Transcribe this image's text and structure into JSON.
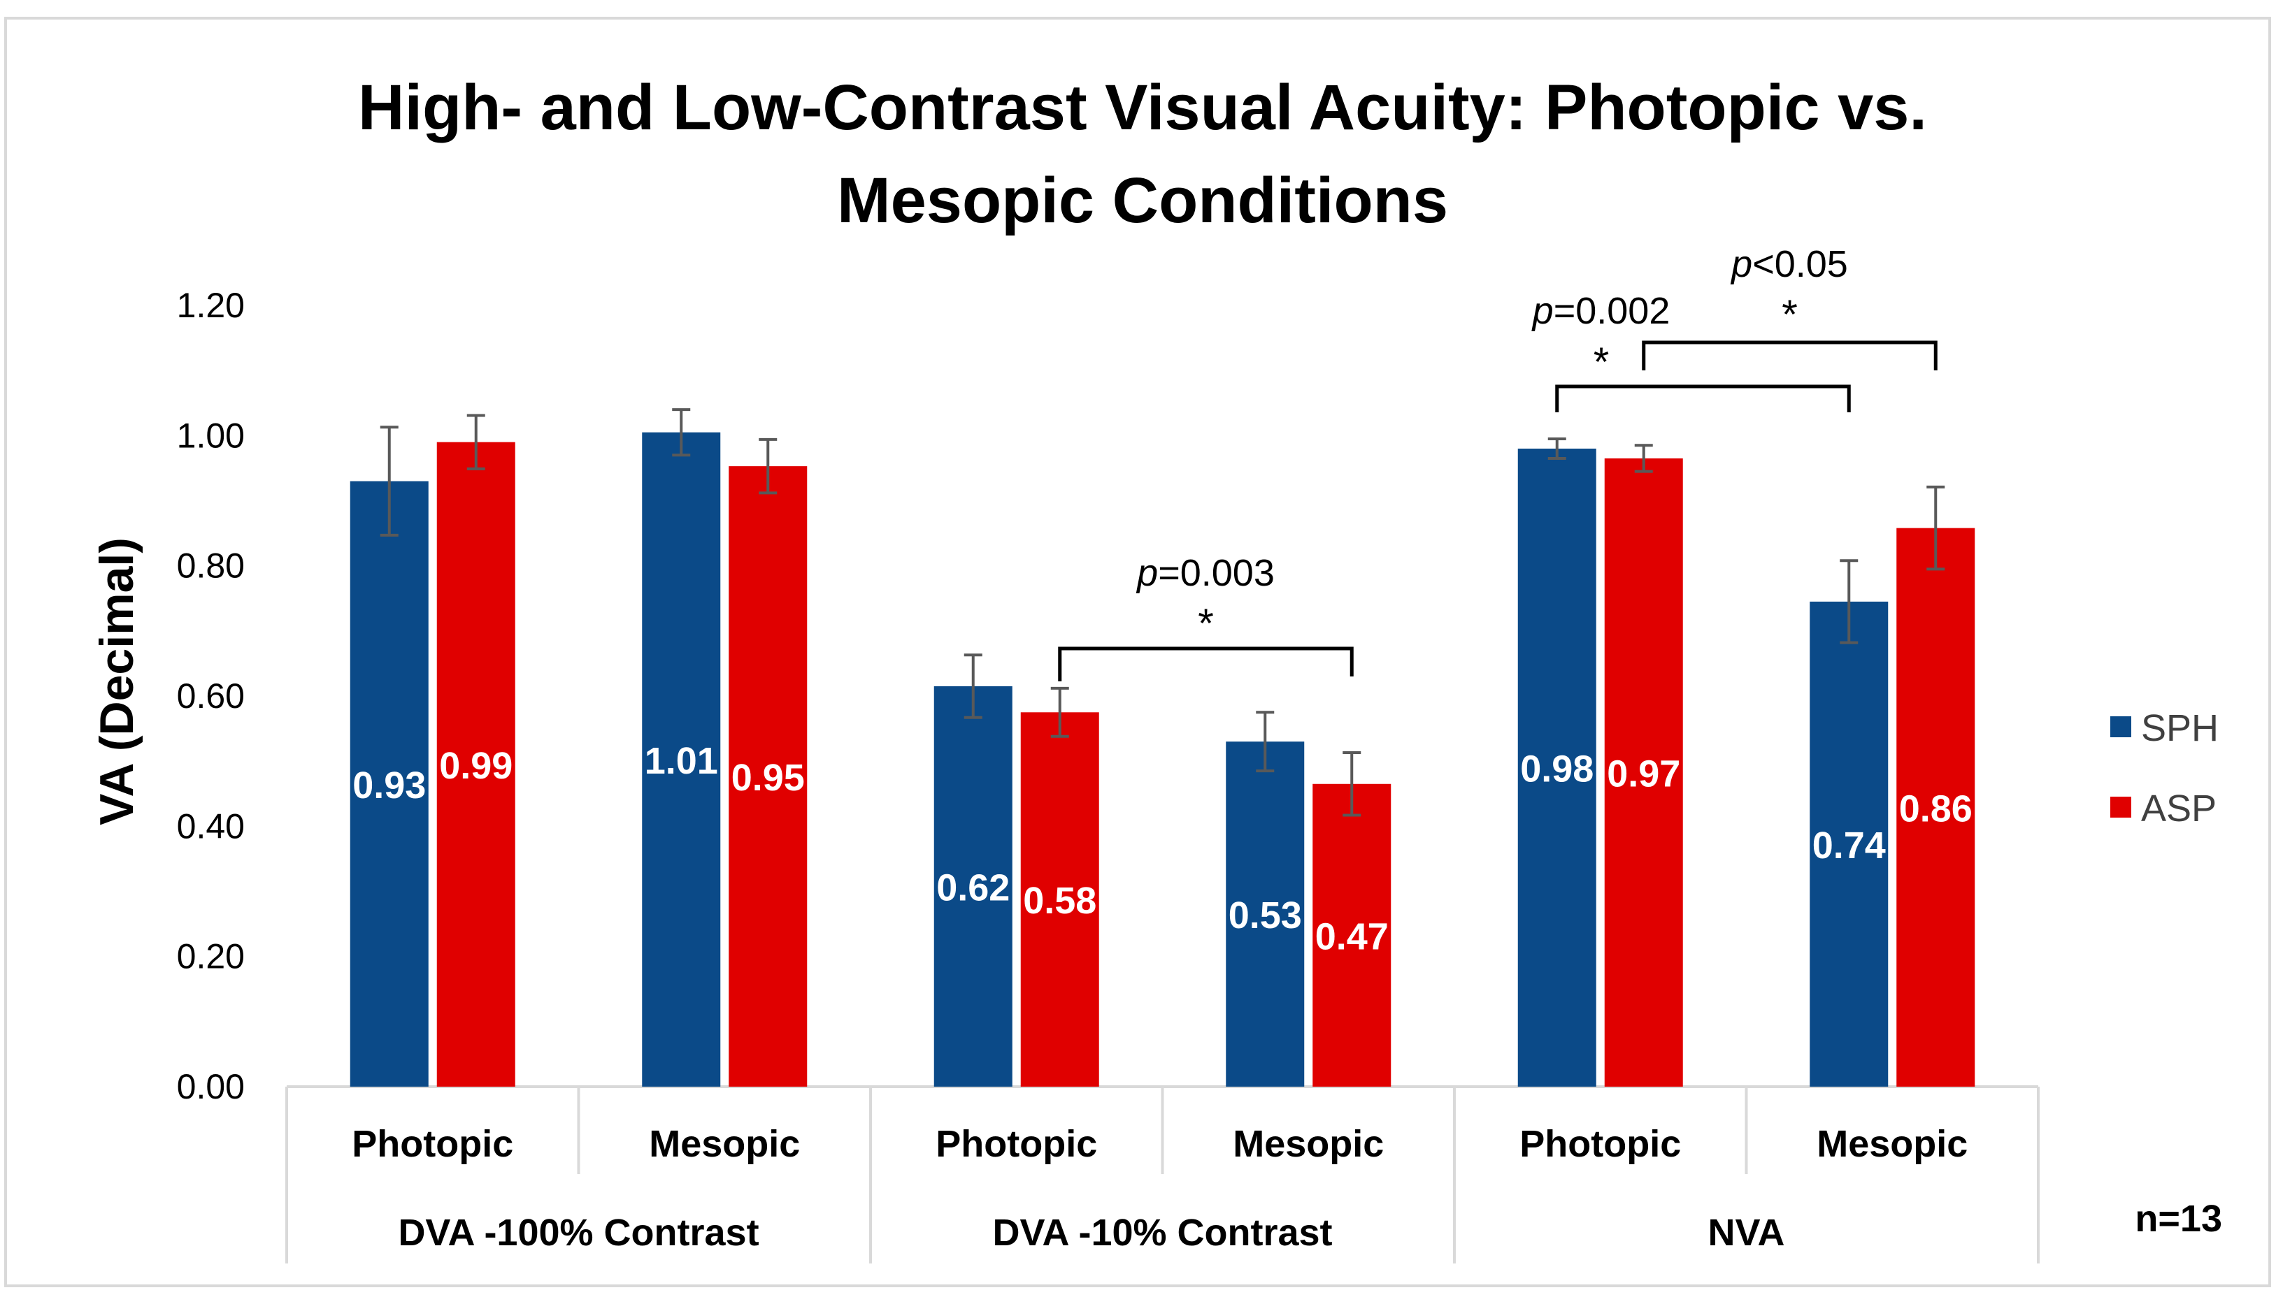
{
  "chart_data": {
    "type": "bar",
    "title": "High- and Low-Contrast Visual Acuity: Photopic vs. Mesopic Conditions",
    "title_lines": [
      "High- and Low-Contrast Visual Acuity: Photopic vs.",
      "Mesopic Conditions"
    ],
    "ylabel": "VA (Decimal)",
    "xlabel": "",
    "ylim": [
      0,
      1.2
    ],
    "yticks": [
      "0.00",
      "0.20",
      "0.40",
      "0.60",
      "0.80",
      "1.00",
      "1.20"
    ],
    "ytick_values": [
      0,
      0.2,
      0.4,
      0.6,
      0.8,
      1.0,
      1.2
    ],
    "grid": false,
    "categories": [
      "Photopic",
      "Mesopic",
      "Photopic",
      "Mesopic",
      "Photopic",
      "Mesopic"
    ],
    "groups": [
      "DVA -100% Contrast",
      "DVA -10% Contrast",
      "NVA"
    ],
    "series": [
      {
        "name": "SPH",
        "color": "#0B4A88",
        "values": [
          0.93,
          1.005,
          0.615,
          0.53,
          0.98,
          0.745
        ],
        "labels": [
          "0.93",
          "1.01",
          "0.62",
          "0.53",
          "0.98",
          "0.74"
        ],
        "error": [
          0.083,
          0.035,
          0.048,
          0.045,
          0.015,
          0.063
        ]
      },
      {
        "name": "ASP",
        "color": "#E00000",
        "values": [
          0.99,
          0.953,
          0.575,
          0.465,
          0.965,
          0.858
        ],
        "labels": [
          "0.99",
          "0.95",
          "0.58",
          "0.47",
          "0.97",
          "0.86"
        ],
        "error": [
          0.041,
          0.041,
          0.037,
          0.048,
          0.02,
          0.063
        ]
      }
    ],
    "legend_position": "right",
    "annotations": [
      {
        "p_prefix": "p",
        "p_value": "=0.003",
        "star": "*",
        "from": "ASP Photopic (DVA -10% Contrast)",
        "to": "ASP Mesopic (DVA -10% Contrast)"
      },
      {
        "p_prefix": "p",
        "p_value": "=0.002",
        "star": "*",
        "from": "SPH Photopic (NVA)",
        "to": "SPH Mesopic (NVA)"
      },
      {
        "p_prefix": "p",
        "p_value": "<0.05",
        "star": "*",
        "from": "ASP Photopic (NVA)",
        "to": "ASP Mesopic (NVA)"
      }
    ],
    "sample_note": "n=13"
  }
}
